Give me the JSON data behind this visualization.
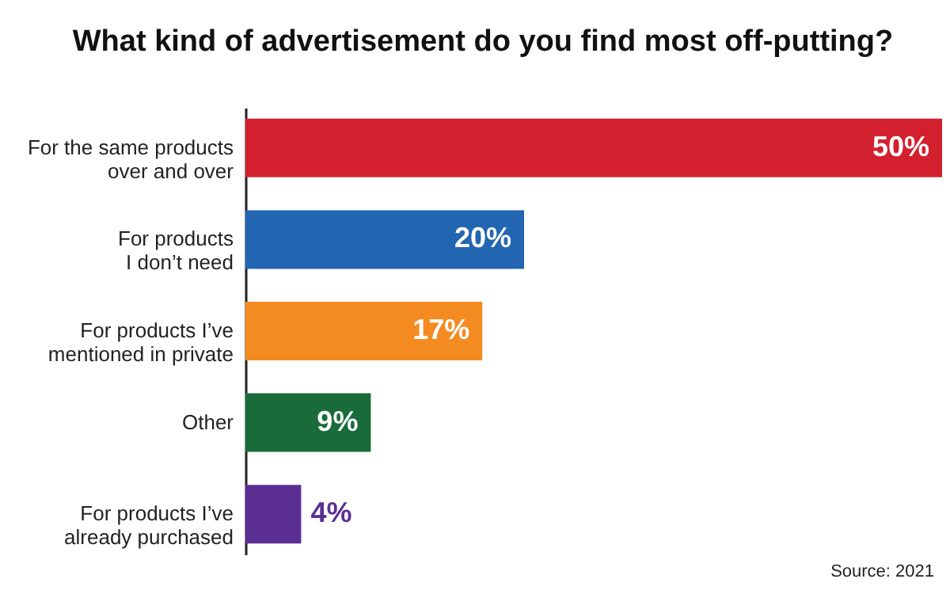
{
  "chart_data": {
    "type": "bar",
    "orientation": "horizontal",
    "title": "What kind of advertisement do you find most off-putting?",
    "categories": [
      "For the same products\nover and over",
      "For products\nI don’t need",
      "For products I’ve\nmentioned in private",
      "Other",
      "For products I’ve\nalready purchased"
    ],
    "values": [
      50,
      20,
      17,
      9,
      4
    ],
    "colors": [
      "#d2202f",
      "#2265b0",
      "#f48b21",
      "#1a6b3a",
      "#5b2f91"
    ],
    "value_labels": [
      "50%",
      "20%",
      "17%",
      "9%",
      "4%"
    ],
    "annotations": [
      "Source: 2021"
    ]
  }
}
